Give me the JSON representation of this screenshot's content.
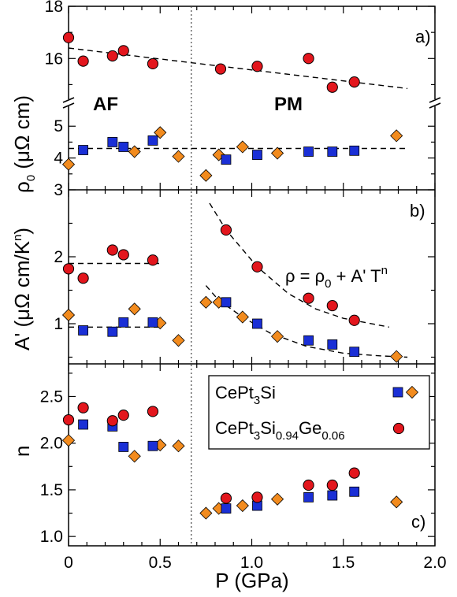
{
  "chart_data": {
    "type": "scatter",
    "xlabel": "P (GPa)",
    "x_ticks": [
      "0",
      "0.5",
      "1.0",
      "1.5",
      "2.0"
    ],
    "xlim": [
      0,
      2.0
    ],
    "critical_pressure": 0.67,
    "colors": {
      "square": "#1a2fd6",
      "diamond": "#f28b1e",
      "circle": "#e3161d"
    },
    "legend": [
      {
        "series_label": "CePt3Si",
        "markers": [
          "square",
          "diamond"
        ]
      },
      {
        "series_label": "CePt3Si0.94Ge0.06",
        "markers": [
          "circle"
        ]
      }
    ],
    "legend_text": {
      "l1_main": "CePt",
      "l1_sub": "3",
      "l1_tail": "Si",
      "l2_main": "CePt",
      "l2_sub1": "3",
      "l2_mid": "Si",
      "l2_sub2": "0.94",
      "l2_mid2": "Ge",
      "l2_sub3": "0.06"
    },
    "panels": [
      {
        "id": "a",
        "label": "a)",
        "ylabel_parts": {
          "rho": "ρ",
          "sub": "0",
          "unit": " (μΩ cm)"
        },
        "broken_axis": true,
        "upper_ylim": [
          14.5,
          18
        ],
        "upper_ticks": [
          "16",
          "18"
        ],
        "lower_ylim": [
          3,
          5.6
        ],
        "lower_ticks": [
          "3",
          "4",
          "5"
        ],
        "annotations": {
          "af": "AF",
          "pm": "PM"
        },
        "upper_circle": [
          [
            0.0,
            16.8
          ],
          [
            0.08,
            15.9
          ],
          [
            0.24,
            16.1
          ],
          [
            0.3,
            16.3
          ],
          [
            0.46,
            15.8
          ],
          [
            0.83,
            15.6
          ],
          [
            1.03,
            15.7
          ],
          [
            1.31,
            16.0
          ],
          [
            1.44,
            14.9
          ],
          [
            1.56,
            15.1
          ]
        ],
        "upper_fit": [
          [
            0.0,
            16.4
          ],
          [
            1.85,
            14.85
          ]
        ],
        "lower_square": [
          [
            0.08,
            4.25
          ],
          [
            0.24,
            4.5
          ],
          [
            0.3,
            4.35
          ],
          [
            0.46,
            4.55
          ],
          [
            0.86,
            3.95
          ],
          [
            1.03,
            4.1
          ],
          [
            1.31,
            4.2
          ],
          [
            1.44,
            4.2
          ],
          [
            1.56,
            4.23
          ]
        ],
        "lower_diamond": [
          [
            0.0,
            3.8
          ],
          [
            0.36,
            4.2
          ],
          [
            0.5,
            4.8
          ],
          [
            0.6,
            4.05
          ],
          [
            0.75,
            3.45
          ],
          [
            0.82,
            4.1
          ],
          [
            0.95,
            4.35
          ],
          [
            1.14,
            4.15
          ],
          [
            1.79,
            4.7
          ]
        ],
        "lower_fit": [
          [
            0.0,
            4.3
          ],
          [
            1.85,
            4.3
          ]
        ]
      },
      {
        "id": "b",
        "label": "b)",
        "ylabel_parts": {
          "main": "A' (μΩ cm/K",
          "sup": "n",
          "tail": ")"
        },
        "ylim": [
          0.4,
          3.0
        ],
        "ticks": [
          "1",
          "2"
        ],
        "formula_parts": {
          "a": "ρ = ρ",
          "sub": "0",
          "b": " + A' T",
          "sup": "n"
        },
        "circle": [
          [
            0.0,
            1.82
          ],
          [
            0.08,
            1.68
          ],
          [
            0.24,
            2.1
          ],
          [
            0.3,
            2.03
          ],
          [
            0.46,
            1.95
          ],
          [
            0.86,
            2.4
          ],
          [
            1.03,
            1.85
          ],
          [
            1.31,
            1.38
          ],
          [
            1.44,
            1.27
          ],
          [
            1.56,
            1.05
          ]
        ],
        "square": [
          [
            0.08,
            0.9
          ],
          [
            0.24,
            0.88
          ],
          [
            0.3,
            1.02
          ],
          [
            0.46,
            1.02
          ],
          [
            0.86,
            1.32
          ],
          [
            1.03,
            1.0
          ],
          [
            1.31,
            0.75
          ],
          [
            1.44,
            0.69
          ],
          [
            1.56,
            0.58
          ]
        ],
        "diamond": [
          [
            0.0,
            1.13
          ],
          [
            0.36,
            1.22
          ],
          [
            0.5,
            1.01
          ],
          [
            0.6,
            0.75
          ],
          [
            0.75,
            1.32
          ],
          [
            0.82,
            1.32
          ],
          [
            0.95,
            1.1
          ],
          [
            1.14,
            0.81
          ],
          [
            1.79,
            0.51
          ]
        ],
        "fit_af_circle": [
          [
            0.0,
            1.9
          ],
          [
            0.5,
            1.9
          ]
        ],
        "fit_af_square": [
          [
            0.0,
            0.95
          ],
          [
            0.5,
            0.95
          ]
        ],
        "fit_pm_circle": [
          [
            0.77,
            2.8
          ],
          [
            0.86,
            2.4
          ],
          [
            1.03,
            1.85
          ],
          [
            1.2,
            1.45
          ],
          [
            1.35,
            1.22
          ],
          [
            1.5,
            1.08
          ],
          [
            1.75,
            0.95
          ]
        ],
        "fit_pm_square": [
          [
            0.75,
            1.57
          ],
          [
            0.82,
            1.35
          ],
          [
            0.95,
            1.1
          ],
          [
            1.1,
            0.86
          ],
          [
            1.3,
            0.66
          ],
          [
            1.5,
            0.56
          ],
          [
            1.7,
            0.52
          ],
          [
            1.85,
            0.5
          ]
        ]
      },
      {
        "id": "c",
        "label": "c)",
        "ylabel": "n",
        "ylim": [
          0.9,
          2.85
        ],
        "ticks": [
          "1.0",
          "1.5",
          "2.0",
          "2.5"
        ],
        "circle": [
          [
            0.0,
            2.25
          ],
          [
            0.08,
            2.38
          ],
          [
            0.24,
            2.24
          ],
          [
            0.3,
            2.3
          ],
          [
            0.46,
            2.34
          ],
          [
            0.86,
            1.41
          ],
          [
            1.03,
            1.42
          ],
          [
            1.31,
            1.55
          ],
          [
            1.44,
            1.55
          ],
          [
            1.56,
            1.68
          ]
        ],
        "square": [
          [
            0.08,
            2.2
          ],
          [
            0.24,
            2.18
          ],
          [
            0.3,
            1.96
          ],
          [
            0.46,
            1.97
          ],
          [
            0.86,
            1.3
          ],
          [
            1.03,
            1.33
          ],
          [
            1.31,
            1.42
          ],
          [
            1.44,
            1.44
          ],
          [
            1.56,
            1.48
          ]
        ],
        "diamond": [
          [
            0.0,
            2.03
          ],
          [
            0.36,
            1.86
          ],
          [
            0.5,
            1.98
          ],
          [
            0.6,
            1.97
          ],
          [
            0.75,
            1.25
          ],
          [
            0.82,
            1.3
          ],
          [
            0.95,
            1.33
          ],
          [
            1.14,
            1.4
          ],
          [
            1.79,
            1.37
          ]
        ]
      }
    ]
  }
}
